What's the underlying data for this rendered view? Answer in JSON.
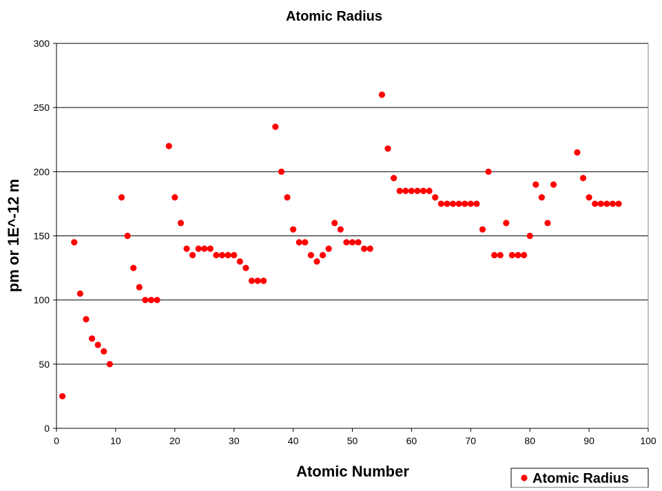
{
  "chart_data": {
    "type": "scatter",
    "title": "Atomic Radius",
    "xlabel": "Atomic Number",
    "ylabel": "pm or 1E^-12 m",
    "xlim": [
      0,
      100
    ],
    "ylim": [
      0,
      300
    ],
    "xticks": [
      0,
      10,
      20,
      30,
      40,
      50,
      60,
      70,
      80,
      90,
      100
    ],
    "yticks": [
      0,
      50,
      100,
      150,
      200,
      250,
      300
    ],
    "grid": "horizontal",
    "legend": "bottom-right",
    "series": [
      {
        "name": "Atomic Radius",
        "color": "#ff0000",
        "marker": "circle",
        "points": [
          [
            1,
            25
          ],
          [
            3,
            145
          ],
          [
            4,
            105
          ],
          [
            5,
            85
          ],
          [
            6,
            70
          ],
          [
            7,
            65
          ],
          [
            8,
            60
          ],
          [
            9,
            50
          ],
          [
            11,
            180
          ],
          [
            12,
            150
          ],
          [
            13,
            125
          ],
          [
            14,
            110
          ],
          [
            15,
            100
          ],
          [
            16,
            100
          ],
          [
            17,
            100
          ],
          [
            19,
            220
          ],
          [
            20,
            180
          ],
          [
            21,
            160
          ],
          [
            22,
            140
          ],
          [
            23,
            135
          ],
          [
            24,
            140
          ],
          [
            25,
            140
          ],
          [
            26,
            140
          ],
          [
            27,
            135
          ],
          [
            28,
            135
          ],
          [
            29,
            135
          ],
          [
            30,
            135
          ],
          [
            31,
            130
          ],
          [
            32,
            125
          ],
          [
            33,
            115
          ],
          [
            34,
            115
          ],
          [
            35,
            115
          ],
          [
            37,
            235
          ],
          [
            38,
            200
          ],
          [
            39,
            180
          ],
          [
            40,
            155
          ],
          [
            41,
            145
          ],
          [
            42,
            145
          ],
          [
            43,
            135
          ],
          [
            44,
            130
          ],
          [
            45,
            135
          ],
          [
            46,
            140
          ],
          [
            47,
            160
          ],
          [
            48,
            155
          ],
          [
            49,
            145
          ],
          [
            50,
            145
          ],
          [
            51,
            145
          ],
          [
            52,
            140
          ],
          [
            53,
            140
          ],
          [
            55,
            260
          ],
          [
            56,
            218
          ],
          [
            57,
            195
          ],
          [
            58,
            185
          ],
          [
            59,
            185
          ],
          [
            60,
            185
          ],
          [
            61,
            185
          ],
          [
            62,
            185
          ],
          [
            63,
            185
          ],
          [
            64,
            180
          ],
          [
            65,
            175
          ],
          [
            66,
            175
          ],
          [
            67,
            175
          ],
          [
            68,
            175
          ],
          [
            69,
            175
          ],
          [
            70,
            175
          ],
          [
            71,
            175
          ],
          [
            72,
            155
          ],
          [
            73,
            200
          ],
          [
            74,
            135
          ],
          [
            75,
            135
          ],
          [
            76,
            160
          ],
          [
            77,
            135
          ],
          [
            78,
            135
          ],
          [
            79,
            135
          ],
          [
            80,
            150
          ],
          [
            81,
            190
          ],
          [
            82,
            180
          ],
          [
            83,
            160
          ],
          [
            84,
            190
          ],
          [
            88,
            215
          ],
          [
            89,
            195
          ],
          [
            90,
            180
          ],
          [
            91,
            175
          ],
          [
            92,
            175
          ],
          [
            93,
            175
          ],
          [
            94,
            175
          ],
          [
            95,
            175
          ]
        ]
      }
    ]
  }
}
